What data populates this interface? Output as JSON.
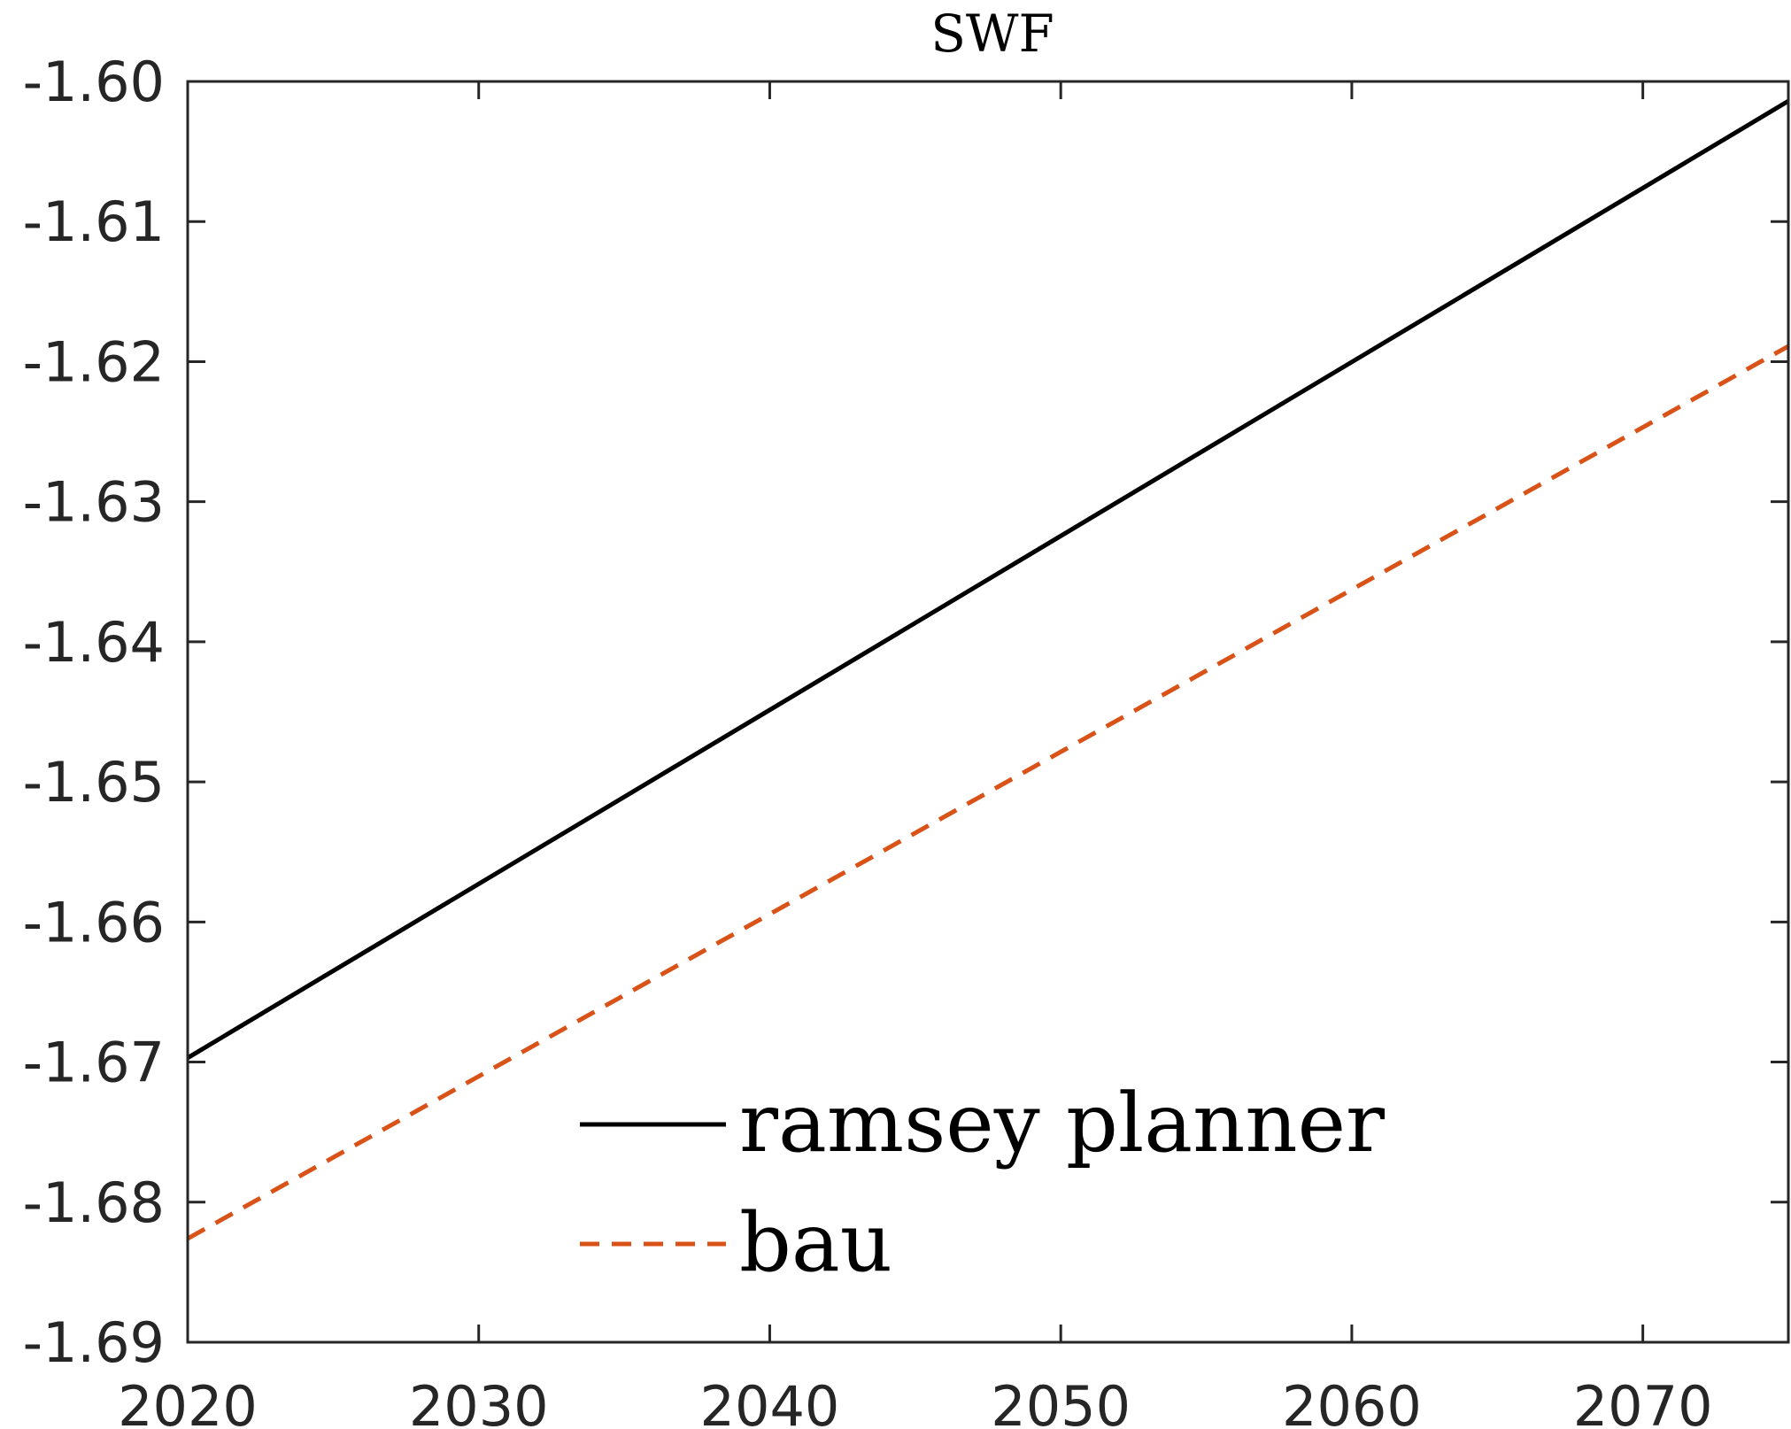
{
  "chart_data": {
    "type": "line",
    "title": "SWF",
    "xlabel": "",
    "ylabel": "",
    "xlim": [
      2020,
      2075
    ],
    "ylim": [
      -1.69,
      -1.6
    ],
    "xticks": [
      2020,
      2030,
      2040,
      2050,
      2060,
      2070
    ],
    "xtick_labels": [
      "2020",
      "2030",
      "2040",
      "2050",
      "2060",
      "2070"
    ],
    "yticks": [
      -1.6,
      -1.61,
      -1.62,
      -1.63,
      -1.64,
      -1.65,
      -1.66,
      -1.67,
      -1.68,
      -1.69
    ],
    "ytick_labels": [
      "-1.60",
      "-1.61",
      "-1.62",
      "-1.63",
      "-1.64",
      "-1.65",
      "-1.66",
      "-1.67",
      "-1.68",
      "-1.69"
    ],
    "grid": false,
    "legend_position": "bottom-center",
    "series": [
      {
        "name": "ramsey planner",
        "style": "solid",
        "color": "#000000",
        "x": [
          2020,
          2075
        ],
        "y": [
          -1.6697,
          -1.6014
        ]
      },
      {
        "name": "bau",
        "style": "dashed",
        "color": "#D95319",
        "x": [
          2020,
          2075
        ],
        "y": [
          -1.6826,
          -1.6189
        ]
      }
    ]
  }
}
